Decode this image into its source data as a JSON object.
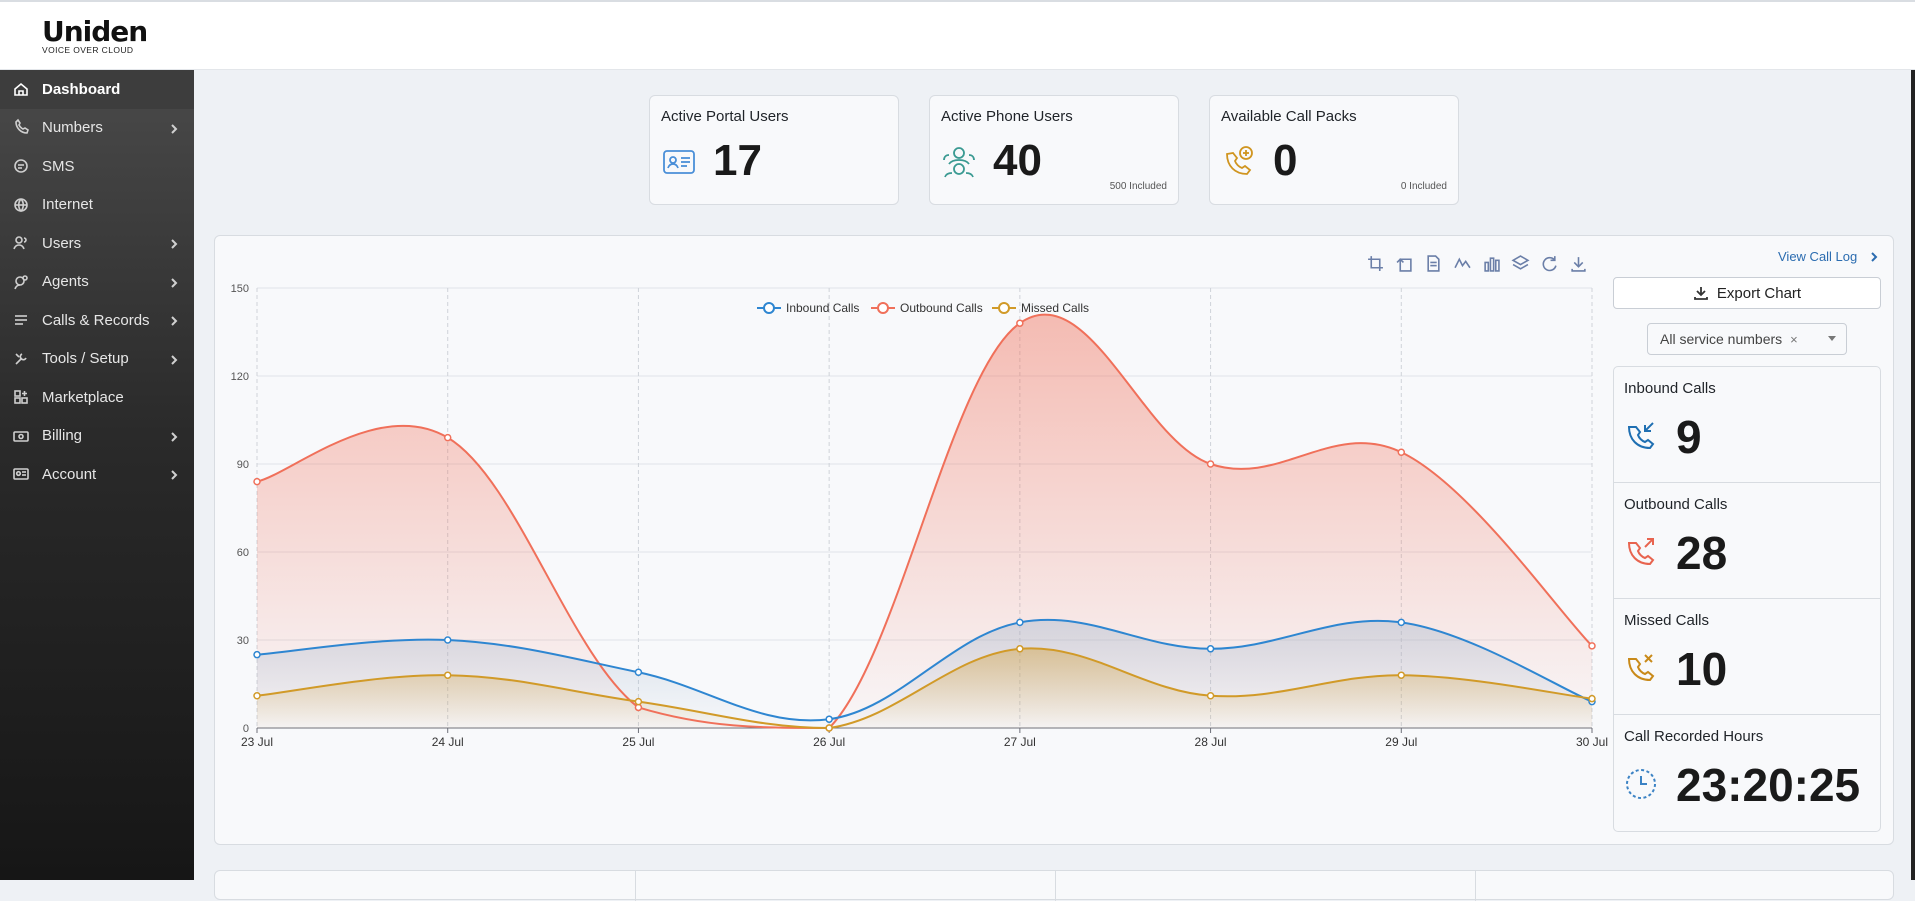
{
  "brand": {
    "name": "Uniden",
    "tagline": "VOICE OVER CLOUD"
  },
  "sidebar": {
    "items": [
      {
        "label": "Dashboard",
        "icon": "home-icon",
        "active": true,
        "submenu": false
      },
      {
        "label": "Numbers",
        "icon": "phone-icon",
        "active": false,
        "submenu": true
      },
      {
        "label": "SMS",
        "icon": "message-icon",
        "active": false,
        "submenu": false
      },
      {
        "label": "Internet",
        "icon": "globe-icon",
        "active": false,
        "submenu": false
      },
      {
        "label": "Users",
        "icon": "users-icon",
        "active": false,
        "submenu": true
      },
      {
        "label": "Agents",
        "icon": "agent-icon",
        "active": false,
        "submenu": true
      },
      {
        "label": "Calls & Records",
        "icon": "records-icon",
        "active": false,
        "submenu": true
      },
      {
        "label": "Tools / Setup",
        "icon": "tools-icon",
        "active": false,
        "submenu": true
      },
      {
        "label": "Marketplace",
        "icon": "marketplace-icon",
        "active": false,
        "submenu": false
      },
      {
        "label": "Billing",
        "icon": "billing-icon",
        "active": false,
        "submenu": true
      },
      {
        "label": "Account",
        "icon": "account-icon",
        "active": false,
        "submenu": true
      }
    ]
  },
  "stats": {
    "portal_users": {
      "title": "Active Portal Users",
      "value": "17",
      "note": ""
    },
    "phone_users": {
      "title": "Active Phone Users",
      "value": "40",
      "note": "500 Included"
    },
    "call_packs": {
      "title": "Available Call Packs",
      "value": "0",
      "note": "0 Included"
    }
  },
  "chart_panel": {
    "view_call_log": "View Call Log",
    "export_label": "Export Chart",
    "service_select": {
      "value": "All service numbers",
      "clear": "×"
    },
    "toolbox": [
      "zoom-icon",
      "zoom-reset-icon",
      "data-view-icon",
      "line-chart-icon",
      "bar-chart-icon",
      "stack-icon",
      "refresh-icon",
      "download-icon"
    ]
  },
  "side_stats": [
    {
      "title": "Inbound Calls",
      "value": "9",
      "icon": "inbound-call-icon",
      "color": "#1f6fb2"
    },
    {
      "title": "Outbound Calls",
      "value": "28",
      "icon": "outbound-call-icon",
      "color": "#e8644f"
    },
    {
      "title": "Missed Calls",
      "value": "10",
      "icon": "missed-call-icon",
      "color": "#c98a1a"
    },
    {
      "title": "Call Recorded Hours",
      "value": "23:20:25",
      "icon": "clock-icon",
      "color": "#3b82c4"
    }
  ],
  "chart_data": {
    "type": "area",
    "x": [
      "23 Jul",
      "24 Jul",
      "25 Jul",
      "26 Jul",
      "27 Jul",
      "28 Jul",
      "29 Jul",
      "30 Jul"
    ],
    "ylim": [
      0,
      150
    ],
    "yticks": [
      0,
      30,
      60,
      90,
      120,
      150
    ],
    "grid": true,
    "legend_position": "top-center",
    "smooth": true,
    "series": [
      {
        "name": "Inbound Calls",
        "values": [
          25,
          30,
          19,
          3,
          36,
          27,
          36,
          9
        ],
        "color": "#2e86d1"
      },
      {
        "name": "Outbound Calls",
        "values": [
          84,
          99,
          7,
          0,
          138,
          90,
          94,
          28
        ],
        "color": "#f0705a"
      },
      {
        "name": "Missed Calls",
        "values": [
          11,
          18,
          9,
          0,
          27,
          11,
          18,
          10
        ],
        "color": "#d19a28"
      }
    ]
  }
}
